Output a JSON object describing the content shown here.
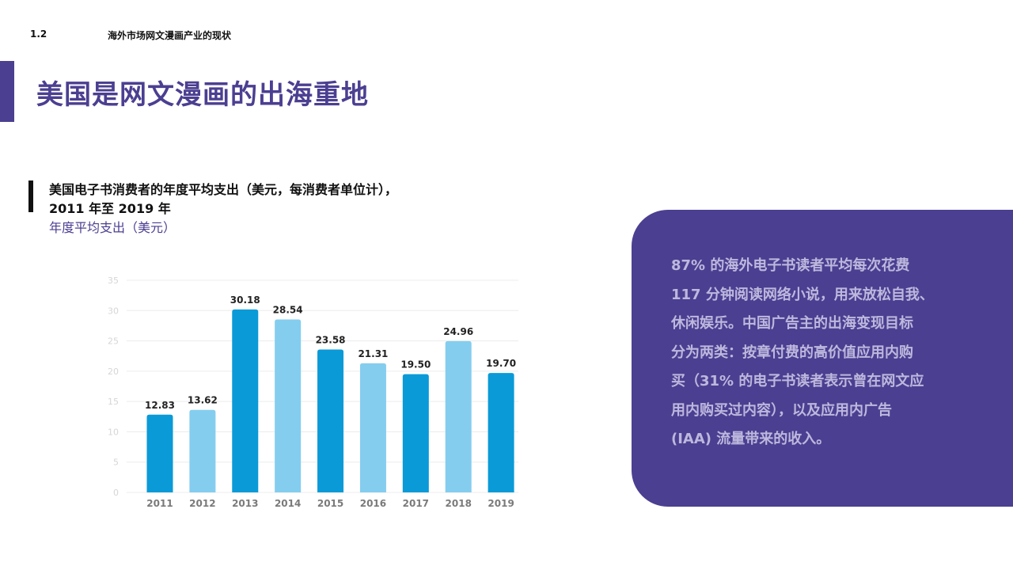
{
  "header": {
    "section_number": "1.2",
    "section_title": "海外市场网文漫画产业的现状",
    "main_title": "美国是网文漫画的出海重地"
  },
  "chart_header": {
    "title_line1": "美国电子书消费者的年度平均支出（美元，每消费者单位计），",
    "title_line2": "2011 年至 2019 年",
    "subtitle": "年度平均支出（美元）"
  },
  "chart_data": {
    "type": "bar",
    "title": "美国电子书消费者的年度平均支出（美元，每消费者单位计），2011 年至 2019 年",
    "ylabel": "年度平均支出（美元）",
    "xlabel": "",
    "categories": [
      "2011",
      "2012",
      "2013",
      "2014",
      "2015",
      "2016",
      "2017",
      "2018",
      "2019"
    ],
    "values": [
      12.83,
      13.62,
      30.18,
      28.54,
      23.58,
      21.31,
      19.5,
      24.96,
      19.7
    ],
    "value_labels": [
      "12.83",
      "13.62",
      "30.18",
      "28.54",
      "23.58",
      "21.31",
      "19.50",
      "24.96",
      "19.70"
    ],
    "ylim": [
      0,
      35
    ],
    "yticks": [
      0,
      5,
      10,
      15,
      20,
      25,
      30,
      35
    ],
    "grid": true,
    "colors": [
      "#0a9ad7",
      "#84cdef",
      "#0a9ad7",
      "#84cdef",
      "#0a9ad7",
      "#84cdef",
      "#0a9ad7",
      "#84cdef",
      "#0a9ad7"
    ]
  },
  "info_box": {
    "text_lines": [
      "87% 的海外电子书读者平均每次花费",
      "117 分钟阅读网络小说，用来放松自我、",
      "休闲娱乐。中国广告主的出海变现目标",
      "分为两类：按章付费的高价值应用内购",
      "买（31% 的电子书读者表示曾在网文应",
      "用内购买过内容），以及应用内广告",
      "(IAA) 流量带来的收入。"
    ]
  },
  "colors": {
    "brand_purple": "#4b3f91",
    "bar_dark": "#0a9ad7",
    "bar_light": "#84cdef",
    "info_text": "#bdb8dd"
  }
}
